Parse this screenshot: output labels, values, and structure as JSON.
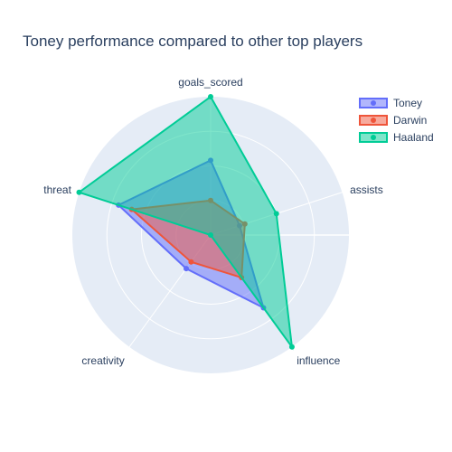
{
  "chart_data": {
    "type": "radar",
    "title": "Toney performance compared to other top players",
    "axes": [
      "goals_scored",
      "assists",
      "influence",
      "creativity",
      "threat"
    ],
    "radial_range": [
      0,
      1
    ],
    "grid": true,
    "legend_position": "top-right",
    "series": [
      {
        "name": "Toney",
        "color": "#636efa",
        "fill": "rgba(99,110,250,0.5)",
        "values": [
          0.54,
          0.22,
          0.65,
          0.3,
          0.7
        ]
      },
      {
        "name": "Darwin",
        "color": "#ef553b",
        "fill": "rgba(239,85,59,0.5)",
        "values": [
          0.25,
          0.26,
          0.38,
          0.24,
          0.6
        ]
      },
      {
        "name": "Haaland",
        "color": "#00cc96",
        "fill": "rgba(0,204,150,0.5)",
        "values": [
          1.0,
          0.5,
          1.0,
          0.0,
          1.0
        ]
      }
    ]
  }
}
